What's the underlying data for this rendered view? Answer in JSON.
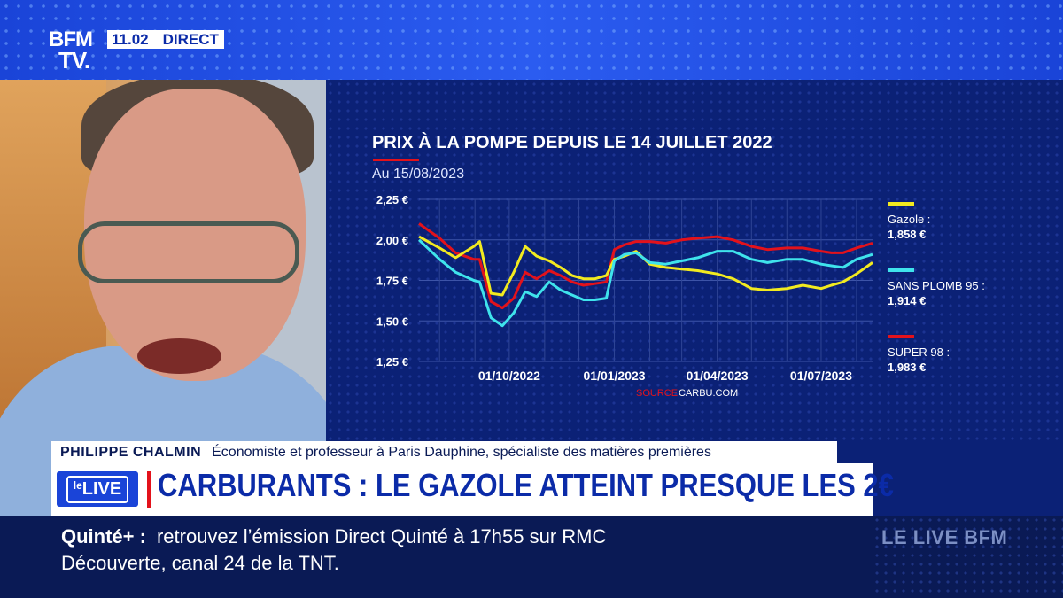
{
  "header": {
    "logo_top": "BFM",
    "logo_bottom": "TV.",
    "time": "11.02",
    "status": "DIRECT"
  },
  "chart_data": {
    "type": "line",
    "title": "PRIX À LA POMPE DEPUIS LE 14 JUILLET 2022",
    "subtitle": "Au 15/08/2023",
    "source_label": "SOURCE",
    "source": "CARBU.COM",
    "x_ticks": [
      "01/10/2022",
      "01/01/2023",
      "01/04/2023",
      "01/07/2023"
    ],
    "x_range": [
      "2022-07-14",
      "2023-08-15"
    ],
    "y_ticks": [
      "2,25 €",
      "2,00 €",
      "1,75 €",
      "1,50 €",
      "1,25 €"
    ],
    "ylim": [
      1.25,
      2.25
    ],
    "grid": true,
    "x": [
      "2022-07-14",
      "2022-08-01",
      "2022-08-15",
      "2022-08-31",
      "2022-09-05",
      "2022-09-15",
      "2022-09-25",
      "2022-10-05",
      "2022-10-15",
      "2022-10-25",
      "2022-11-05",
      "2022-11-15",
      "2022-11-25",
      "2022-12-05",
      "2022-12-15",
      "2022-12-25",
      "2023-01-01",
      "2023-01-10",
      "2023-01-20",
      "2023-02-01",
      "2023-02-15",
      "2023-03-01",
      "2023-03-15",
      "2023-04-01",
      "2023-04-15",
      "2023-05-01",
      "2023-05-15",
      "2023-06-01",
      "2023-06-15",
      "2023-07-01",
      "2023-07-10",
      "2023-07-20",
      "2023-08-01",
      "2023-08-15"
    ],
    "series": [
      {
        "name": "Gazole :",
        "value_label": "1,858 €",
        "color": "#f2ea1f",
        "values": [
          2.02,
          1.95,
          1.89,
          1.96,
          1.99,
          1.67,
          1.66,
          1.8,
          1.96,
          1.9,
          1.87,
          1.83,
          1.78,
          1.76,
          1.76,
          1.78,
          1.88,
          1.9,
          1.93,
          1.85,
          1.83,
          1.82,
          1.81,
          1.79,
          1.76,
          1.7,
          1.69,
          1.7,
          1.72,
          1.7,
          1.72,
          1.74,
          1.79,
          1.86
        ]
      },
      {
        "name": "SANS PLOMB 95 :",
        "value_label": "1,914 €",
        "color": "#3fe3ec",
        "values": [
          2.0,
          1.88,
          1.8,
          1.75,
          1.74,
          1.52,
          1.47,
          1.55,
          1.68,
          1.65,
          1.74,
          1.69,
          1.66,
          1.63,
          1.63,
          1.64,
          1.87,
          1.91,
          1.92,
          1.86,
          1.85,
          1.87,
          1.89,
          1.93,
          1.93,
          1.88,
          1.86,
          1.88,
          1.88,
          1.85,
          1.84,
          1.83,
          1.88,
          1.91
        ]
      },
      {
        "name": "SUPER 98 :",
        "value_label": "1,983 €",
        "color": "#e3121b",
        "values": [
          2.1,
          2.01,
          1.92,
          1.88,
          1.88,
          1.62,
          1.58,
          1.64,
          1.8,
          1.76,
          1.81,
          1.78,
          1.74,
          1.72,
          1.73,
          1.74,
          1.94,
          1.97,
          1.99,
          1.99,
          1.98,
          2.0,
          2.01,
          2.02,
          2.0,
          1.96,
          1.94,
          1.95,
          1.95,
          1.93,
          1.92,
          1.92,
          1.95,
          1.98
        ]
      }
    ]
  },
  "guest": {
    "name": "PHILIPPE CHALMIN",
    "role": "Économiste et professeur à Paris Dauphine, spécialiste des matières premières"
  },
  "live_badge": {
    "prefix": "le",
    "label": "LIVE"
  },
  "headline": "CARBURANTS : LE GAZOLE ATTEINT PRESQUE LES 2€",
  "ticker": {
    "label": "Quinté+ :",
    "line1": "retrouvez l’émission Direct Quinté à 17h55 sur RMC",
    "line2": "Découverte, canal 24 de la TNT."
  },
  "brand": "LE LIVE BFM"
}
